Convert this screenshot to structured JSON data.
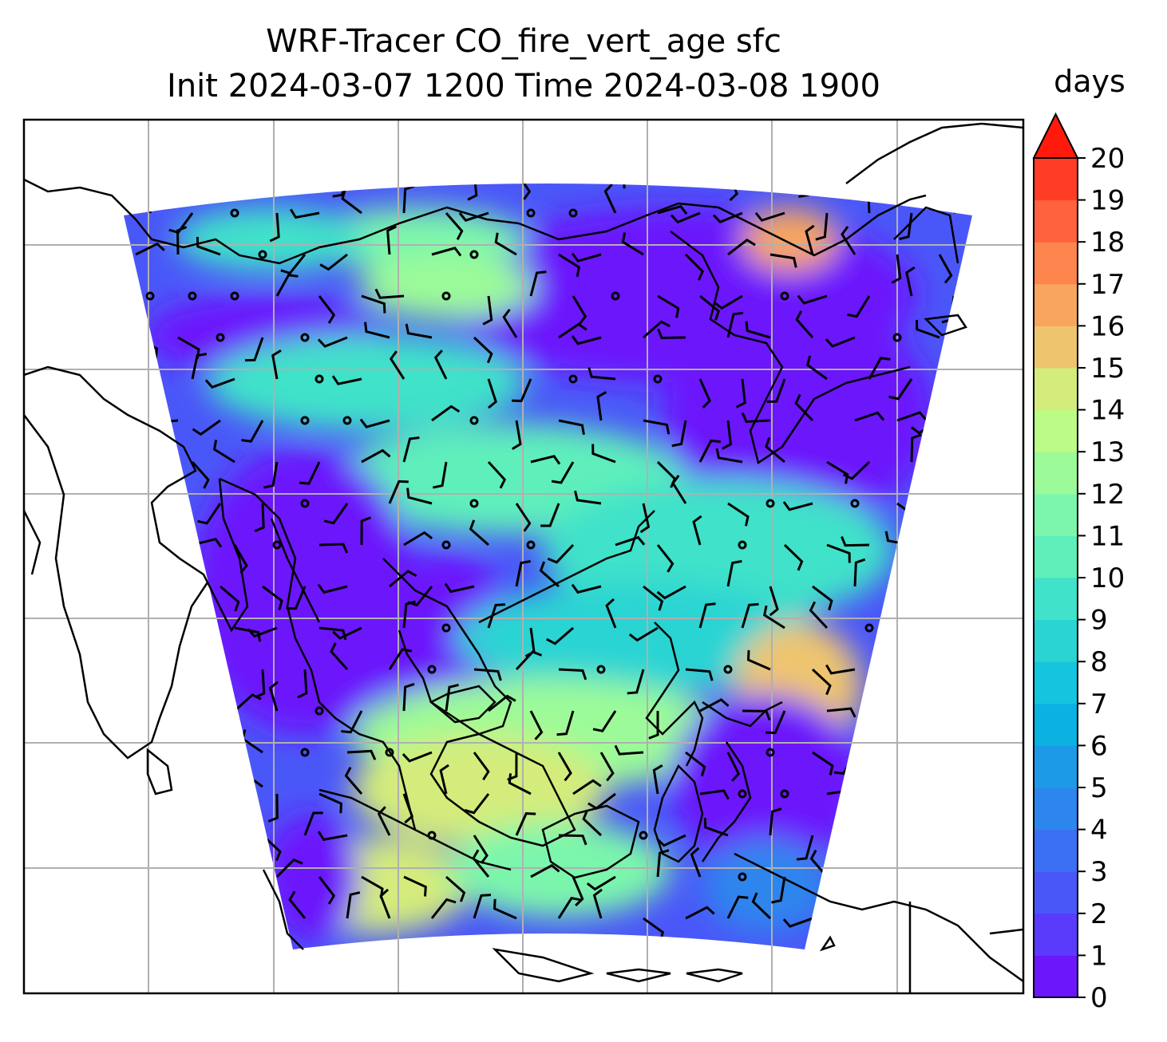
{
  "title": {
    "line1": "WRF-Tracer CO_fire_vert_age sfc",
    "line2": "Init 2024-03-07 1200 Time 2024-03-08 1900"
  },
  "colorbar": {
    "units": "days",
    "ticks": [
      "0",
      "1",
      "2",
      "3",
      "4",
      "5",
      "6",
      "7",
      "8",
      "9",
      "10",
      "11",
      "12",
      "13",
      "14",
      "15",
      "16",
      "17",
      "18",
      "19",
      "20"
    ],
    "colors": [
      "#6c16fc",
      "#5a3bfb",
      "#4a57f8",
      "#3b6ff4",
      "#2d85ee",
      "#1c9ae8",
      "#0bb1e0",
      "#15c4dd",
      "#2ad4d3",
      "#40e2c9",
      "#5eefbb",
      "#7cf6ac",
      "#9cfb98",
      "#bcfb85",
      "#d4ec7c",
      "#eec56e",
      "#f8a55f",
      "#fe854e",
      "#ff623c",
      "#ff3d27"
    ],
    "extend_color": "#ff1a0c"
  },
  "map": {
    "region": "Southeast Asia / Western Pacific",
    "gridlines": true,
    "coastlines": true,
    "wind_barbs": true,
    "field": "CO_fire_vert_age"
  }
}
